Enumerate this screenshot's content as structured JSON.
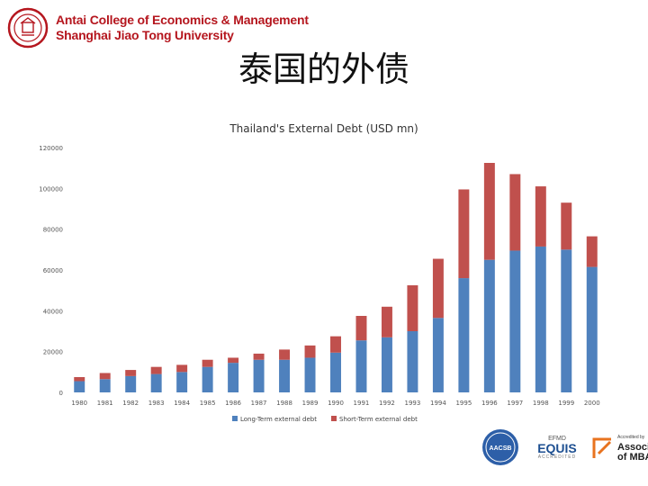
{
  "header": {
    "school_line1": "Antai College of Economics & Management",
    "school_line2": "Shanghai Jiao Tong University"
  },
  "slide": {
    "title": "泰国的外债"
  },
  "chart_data": {
    "type": "bar",
    "stacked": true,
    "title": "Thailand's External Debt (USD mn)",
    "xlabel": "",
    "ylabel": "",
    "ylim": [
      0,
      120000
    ],
    "yticks": [
      0,
      20000,
      40000,
      60000,
      80000,
      100000,
      120000
    ],
    "ytick_labels": [
      "0",
      "20000",
      "40000",
      "60000",
      "80000",
      "100000",
      "120000"
    ],
    "grid": false,
    "legend_position": "bottom",
    "categories": [
      "1980",
      "1981",
      "1982",
      "1983",
      "1984",
      "1985",
      "1986",
      "1987",
      "1988",
      "1989",
      "1990",
      "1991",
      "1992",
      "1993",
      "1994",
      "1995",
      "1996",
      "1997",
      "1998",
      "1999",
      "2000"
    ],
    "series": [
      {
        "name": "Long-Term external debt",
        "color": "#4f81bd",
        "values": [
          5500,
          6500,
          8000,
          9000,
          10000,
          12500,
          14500,
          16000,
          16000,
          17000,
          19500,
          25500,
          27000,
          30000,
          36500,
          56000,
          65000,
          69500,
          71500,
          70000,
          61500
        ]
      },
      {
        "name": "Short-Term external debt",
        "color": "#c0504d",
        "values": [
          2000,
          3000,
          3000,
          3500,
          3500,
          3500,
          2500,
          3000,
          5000,
          6000,
          8000,
          12000,
          15000,
          22500,
          29000,
          43500,
          47500,
          37500,
          29500,
          23000,
          15000
        ]
      }
    ]
  },
  "badges": {
    "aacsb": "AACSB",
    "equis_top": "EFMD",
    "equis": "EQUIS",
    "equis_sub": "ACCREDITED",
    "amba_small": "Accredited by",
    "amba_line1": "Association",
    "amba_line2": "of MBAs"
  }
}
